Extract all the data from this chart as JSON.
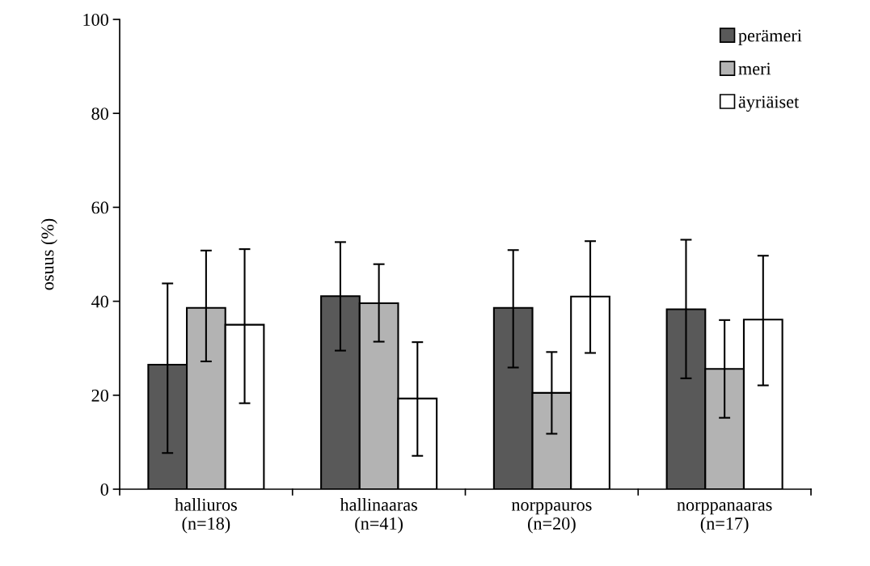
{
  "chart_data": {
    "type": "bar",
    "ylabel": "osuus (%)",
    "categories": [
      "halliuros\n(n=18)",
      "hallinaaras\n(n=41)",
      "norppauros\n(n=20)",
      "norppanaaras\n(n=17)"
    ],
    "series": [
      {
        "name": "perämeri",
        "color": "#595959",
        "values": [
          26.5,
          41.1,
          38.6,
          38.3
        ],
        "errors": [
          [
            7.7,
            43.8
          ],
          [
            29.5,
            52.6
          ],
          [
            25.9,
            50.9
          ],
          [
            23.6,
            53.1
          ]
        ]
      },
      {
        "name": "meri",
        "color": "#b3b3b3",
        "values": [
          38.6,
          39.6,
          20.5,
          25.6
        ],
        "errors": [
          [
            27.2,
            50.8
          ],
          [
            31.4,
            47.9
          ],
          [
            11.8,
            29.2
          ],
          [
            15.2,
            36.0
          ]
        ]
      },
      {
        "name": "äyriäiset",
        "color": "#ffffff",
        "values": [
          35.0,
          19.3,
          41.0,
          36.1
        ],
        "errors": [
          [
            18.3,
            51.1
          ],
          [
            7.1,
            31.3
          ],
          [
            29.0,
            52.8
          ],
          [
            22.1,
            49.7
          ]
        ]
      }
    ],
    "ylim": [
      0,
      100
    ],
    "yticks": [
      0,
      20,
      40,
      60,
      80,
      100
    ],
    "grid": false,
    "legend": "top right"
  }
}
